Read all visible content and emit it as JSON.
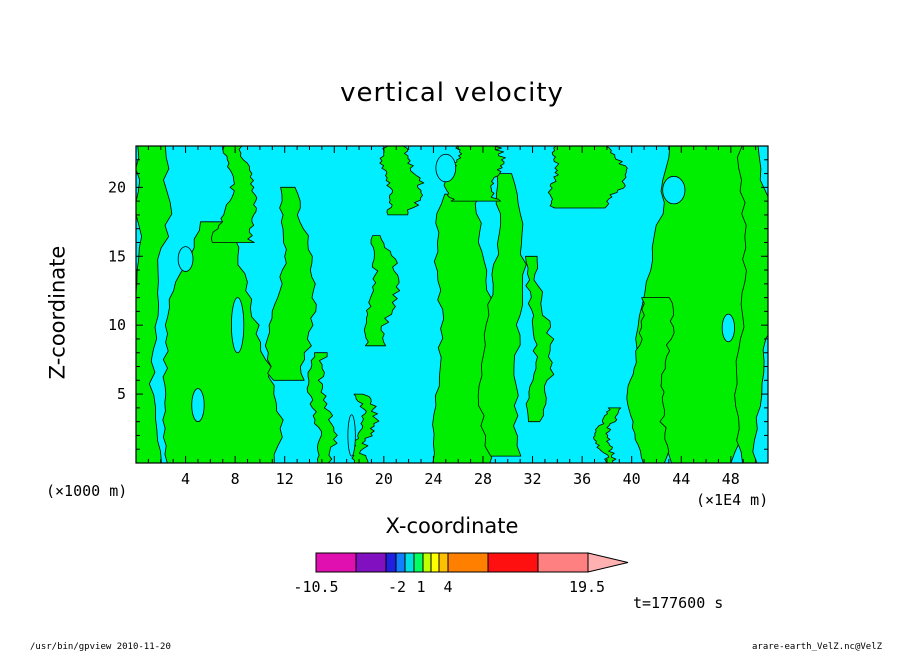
{
  "chart_data": {
    "type": "heatmap",
    "title": "vertical velocity",
    "xlabel": "X-coordinate",
    "ylabel": "Z-coordinate",
    "x_unit_left": "(×1000 m)",
    "x_unit_right": "(×1E4 m)",
    "xlim": [
      0,
      51
    ],
    "ylim": [
      0,
      23
    ],
    "x_ticks": [
      4,
      8,
      12,
      16,
      20,
      24,
      28,
      32,
      36,
      40,
      44,
      48
    ],
    "y_ticks": [
      5,
      10,
      15,
      20
    ],
    "colorbar": {
      "labels": [
        "-10.5",
        "-2",
        "1",
        "4",
        "19.5"
      ],
      "colors": [
        "#e010b0",
        "#8010c0",
        "#2020e0",
        "#1080ff",
        "#00e0e0",
        "#00ff60",
        "#c0ff00",
        "#ffff00",
        "#ffc000",
        "#ff8000",
        "#ff1010",
        "#ff8080",
        "#ffb0b0"
      ]
    },
    "field_colors": {
      "negative": "#00eeff",
      "positive": "#00ee00"
    },
    "time_label": "t=177600 s"
  },
  "footer": {
    "left": "/usr/bin/gpview   2010-11-20",
    "right": "arare-earth_VelZ.nc@VelZ"
  }
}
